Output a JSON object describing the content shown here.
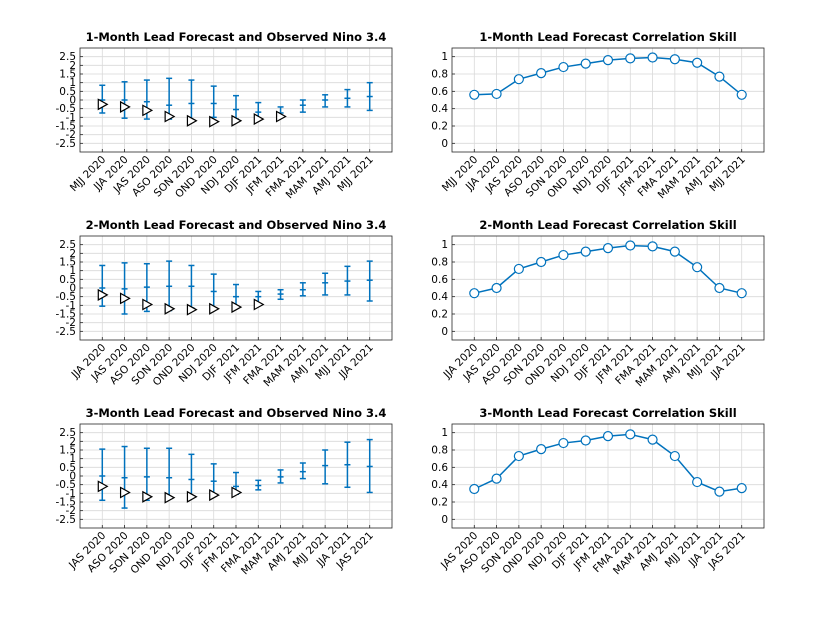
{
  "chart_data": [
    {
      "type": "errorbar",
      "title": "1-Month Lead Forecast and Observed Nino 3.4",
      "categories": [
        "MJJ 2020",
        "JJA 2020",
        "JAS 2020",
        "ASO 2020",
        "SON 2020",
        "OND 2020",
        "NDJ 2020",
        "DJF 2021",
        "JFM 2021",
        "FMA 2021",
        "MAM 2021",
        "AMJ 2021",
        "MJJ 2021"
      ],
      "ylim": [
        -3,
        3
      ],
      "yticks": [
        -2.5,
        -2,
        -1.5,
        -1,
        -0.5,
        0,
        0.5,
        1,
        1.5,
        2,
        2.5
      ],
      "ytick_labels": [
        "-2.5",
        "-2",
        "-1.5",
        "-1",
        "-0.5",
        "0",
        "0.5",
        "1",
        "1.5",
        "2",
        "2.5"
      ],
      "grid": true,
      "forecast": {
        "center": [
          0.0,
          0.0,
          -0.1,
          -0.3,
          -0.2,
          -0.2,
          -0.55,
          -0.7,
          -0.75,
          -0.3,
          0.0,
          0.1,
          0.2
        ],
        "lower": [
          -0.75,
          -1.05,
          -1.1,
          -1.1,
          -1.2,
          -1.0,
          -1.1,
          -1.05,
          -1.0,
          -0.7,
          -0.4,
          -0.4,
          -0.6
        ],
        "upper": [
          0.85,
          1.05,
          1.15,
          1.25,
          1.15,
          0.8,
          0.25,
          -0.15,
          -0.4,
          0.0,
          0.3,
          0.6,
          1.0
        ]
      },
      "observed": [
        -0.25,
        -0.4,
        -0.6,
        -0.95,
        -1.2,
        -1.25,
        -1.2,
        -1.1,
        -0.95
      ]
    },
    {
      "type": "line",
      "title": "1-Month Lead Forecast Correlation Skill",
      "categories": [
        "MJJ 2020",
        "JJA 2020",
        "JAS 2020",
        "ASO 2020",
        "SON 2020",
        "OND 2020",
        "NDJ 2020",
        "DJF 2021",
        "JFM 2021",
        "FMA 2021",
        "MAM 2021",
        "AMJ 2021",
        "MJJ 2021"
      ],
      "values": [
        0.56,
        0.57,
        0.74,
        0.81,
        0.88,
        0.92,
        0.96,
        0.98,
        0.99,
        0.97,
        0.93,
        0.77,
        0.56
      ],
      "ylim": [
        -0.1,
        1.1
      ],
      "yticks": [
        0,
        0.2,
        0.4,
        0.6,
        0.8,
        1
      ],
      "ytick_labels": [
        "0",
        "0.2",
        "0.4",
        "0.6",
        "0.8",
        "1"
      ],
      "grid": true
    },
    {
      "type": "errorbar",
      "title": "2-Month Lead Forecast and Observed Nino 3.4",
      "categories": [
        "JJA 2020",
        "JAS 2020",
        "ASO 2020",
        "SON 2020",
        "OND 2020",
        "NDJ 2020",
        "DJF 2021",
        "JFM 2021",
        "FMA 2021",
        "MAM 2021",
        "AMJ 2021",
        "MJJ 2021",
        "JJA 2021"
      ],
      "ylim": [
        -3,
        3
      ],
      "yticks": [
        -2.5,
        -2,
        -1.5,
        -1,
        -0.5,
        0,
        0.5,
        1,
        1.5,
        2,
        2.5
      ],
      "ytick_labels": [
        "-2.5",
        "-2",
        "-1.5",
        "-1",
        "-0.5",
        "0",
        "0.5",
        "1",
        "1.5",
        "2",
        "2.5"
      ],
      "grid": true,
      "forecast": {
        "center": [
          0.0,
          -0.05,
          0.05,
          0.1,
          0.1,
          -0.2,
          -0.5,
          -0.5,
          -0.35,
          -0.1,
          0.3,
          0.4,
          0.45
        ],
        "lower": [
          -1.05,
          -1.5,
          -1.35,
          -1.3,
          -1.15,
          -1.15,
          -1.15,
          -0.9,
          -0.65,
          -0.45,
          -0.4,
          -0.4,
          -0.75
        ],
        "upper": [
          1.3,
          1.45,
          1.4,
          1.55,
          1.3,
          0.8,
          0.2,
          -0.2,
          -0.1,
          0.3,
          0.85,
          1.25,
          1.55
        ]
      },
      "observed": [
        -0.4,
        -0.6,
        -0.95,
        -1.2,
        -1.25,
        -1.2,
        -1.1,
        -0.95
      ]
    },
    {
      "type": "line",
      "title": "2-Month Lead Forecast Correlation Skill",
      "categories": [
        "JJA 2020",
        "JAS 2020",
        "ASO 2020",
        "SON 2020",
        "OND 2020",
        "NDJ 2020",
        "DJF 2021",
        "JFM 2021",
        "FMA 2021",
        "MAM 2021",
        "AMJ 2021",
        "MJJ 2021",
        "JJA 2021"
      ],
      "values": [
        0.44,
        0.5,
        0.72,
        0.8,
        0.88,
        0.92,
        0.96,
        0.99,
        0.98,
        0.92,
        0.74,
        0.5,
        0.44
      ],
      "ylim": [
        -0.1,
        1.1
      ],
      "yticks": [
        0,
        0.2,
        0.4,
        0.6,
        0.8,
        1
      ],
      "ytick_labels": [
        "0",
        "0.2",
        "0.4",
        "0.6",
        "0.8",
        "1"
      ],
      "grid": true
    },
    {
      "type": "errorbar",
      "title": "3-Month Lead Forecast and Observed Nino 3.4",
      "categories": [
        "JAS 2020",
        "ASO 2020",
        "SON 2020",
        "OND 2020",
        "NDJ 2020",
        "DJF 2021",
        "JFM 2021",
        "FMA 2021",
        "MAM 2021",
        "AMJ 2021",
        "MJJ 2021",
        "JJA 2021",
        "JAS 2021"
      ],
      "ylim": [
        -3,
        3
      ],
      "yticks": [
        -2.5,
        -2,
        -1.5,
        -1,
        -0.5,
        0,
        0.5,
        1,
        1.5,
        2,
        2.5
      ],
      "ytick_labels": [
        "-2.5",
        "-2",
        "-1.5",
        "-1",
        "-0.5",
        "0",
        "0.5",
        "1",
        "1.5",
        "2",
        "2.5"
      ],
      "grid": true,
      "forecast": {
        "center": [
          0.0,
          -0.1,
          -0.05,
          -0.1,
          -0.2,
          -0.3,
          -0.6,
          -0.55,
          -0.05,
          0.25,
          0.6,
          0.65,
          0.55
        ],
        "lower": [
          -1.4,
          -1.85,
          -1.4,
          -1.3,
          -1.2,
          -1.15,
          -1.05,
          -0.8,
          -0.4,
          -0.15,
          -0.45,
          -0.65,
          -0.95
        ],
        "upper": [
          1.55,
          1.7,
          1.6,
          1.6,
          1.25,
          0.7,
          0.2,
          -0.25,
          0.35,
          0.75,
          1.5,
          1.95,
          2.1
        ]
      },
      "observed": [
        -0.6,
        -0.95,
        -1.2,
        -1.25,
        -1.2,
        -1.1,
        -0.95
      ]
    },
    {
      "type": "line",
      "title": "3-Month Lead Forecast Correlation Skill",
      "categories": [
        "JAS 2020",
        "ASO 2020",
        "SON 2020",
        "OND 2020",
        "NDJ 2020",
        "DJF 2021",
        "JFM 2021",
        "FMA 2021",
        "MAM 2021",
        "AMJ 2021",
        "MJJ 2021",
        "JJA 2021",
        "JAS 2021"
      ],
      "values": [
        0.35,
        0.47,
        0.73,
        0.81,
        0.88,
        0.91,
        0.96,
        0.98,
        0.92,
        0.73,
        0.43,
        0.32,
        0.36
      ],
      "ylim": [
        -0.1,
        1.1
      ],
      "yticks": [
        0,
        0.2,
        0.4,
        0.6,
        0.8,
        1
      ],
      "ytick_labels": [
        "0",
        "0.2",
        "0.4",
        "0.6",
        "0.8",
        "1"
      ],
      "grid": true
    }
  ],
  "colors": {
    "forecast": "#0072bd",
    "observed_marker_edge": "#000000",
    "grid": "#d9d9d9",
    "axes": "#262626"
  }
}
